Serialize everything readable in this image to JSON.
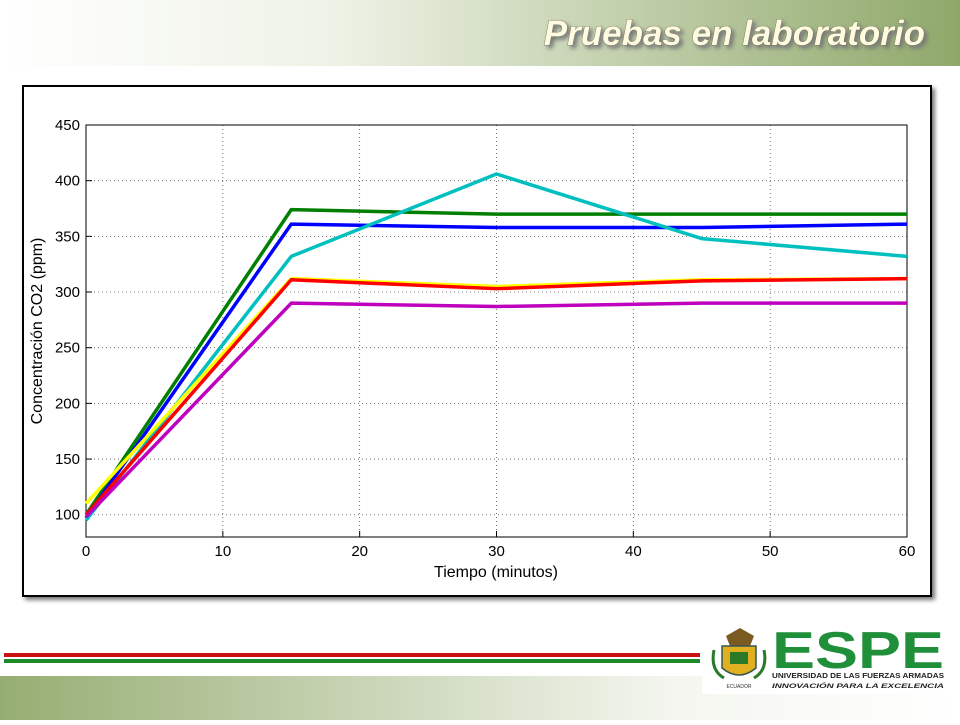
{
  "slide_title": "Pruebas en laboratorio",
  "logo": {
    "name": "ESPE",
    "university": "UNIVERSIDAD DE LAS FUERZAS ARMADAS",
    "motto": "INNOVACIÓN PARA LA EXCELENCIA",
    "country": "ECUADOR"
  },
  "chart_data": {
    "type": "line",
    "xlabel": "Tiempo (minutos)",
    "ylabel": "Concentración CO2 (ppm)",
    "x": [
      0,
      15,
      30,
      45,
      60
    ],
    "series": [
      {
        "color": "#007f00",
        "values": [
          100,
          374,
          370,
          370,
          370
        ]
      },
      {
        "color": "#0000ff",
        "values": [
          97,
          361,
          358,
          358,
          361
        ]
      },
      {
        "color": "#00bfbf",
        "values": [
          95,
          332,
          406,
          348,
          332
        ]
      },
      {
        "color": "#ffff00",
        "values": [
          110,
          312,
          305,
          311,
          312
        ]
      },
      {
        "color": "#ff0000",
        "values": [
          100,
          311,
          303,
          310,
          312
        ]
      },
      {
        "color": "#bf00bf",
        "values": [
          98,
          290,
          287,
          290,
          290
        ]
      }
    ],
    "xlim": [
      0,
      60
    ],
    "xticks": [
      0,
      10,
      20,
      30,
      40,
      50,
      60
    ],
    "ylim": [
      80,
      450
    ],
    "yticks": [
      100,
      150,
      200,
      250,
      300,
      350,
      400,
      450
    ],
    "grid": true
  }
}
